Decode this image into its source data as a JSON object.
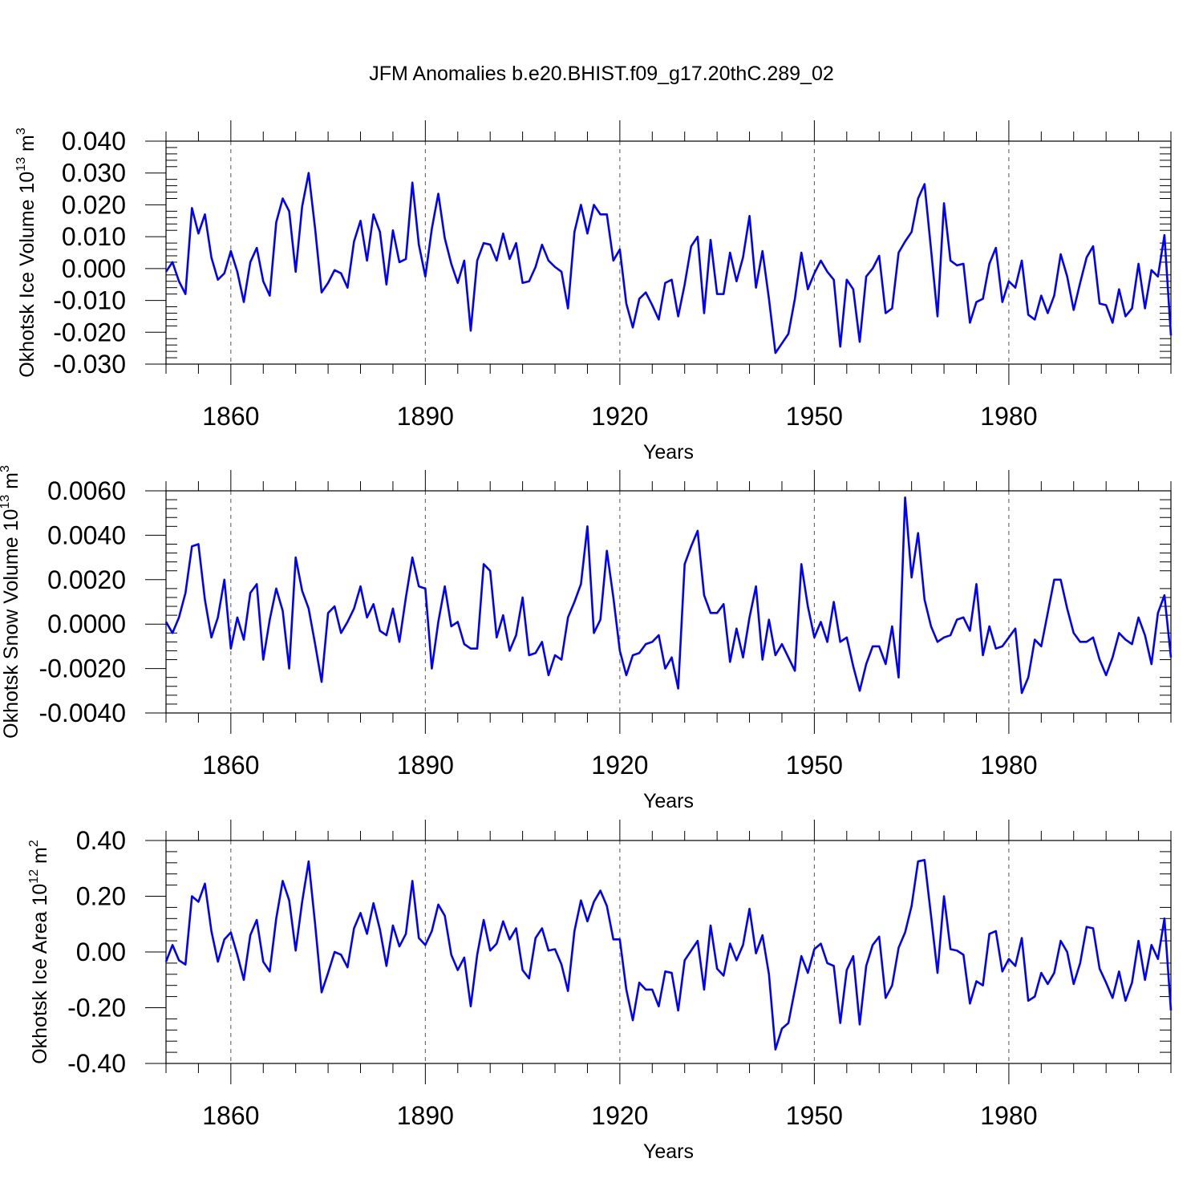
{
  "title": "JFM Anomalies b.e20.BHIST.f09_g17.20thC.289_02",
  "series_color": "#0000ff",
  "chart_data": [
    {
      "type": "line",
      "id": "ice-volume",
      "ylabel_main": "Okhotsk Ice Volume 10",
      "ylabel_exp": "13",
      "ylabel_unit": "m",
      "ylabel_unit_exp": "3",
      "xlabel": "Years",
      "xlim": [
        1850,
        2005
      ],
      "ylim": [
        -0.03,
        0.04
      ],
      "xticks": [
        1860,
        1890,
        1920,
        1950,
        1980
      ],
      "xtick_labels": [
        "1860",
        "1890",
        "1920",
        "1950",
        "1980"
      ],
      "yticks": [
        -0.03,
        -0.02,
        -0.01,
        0.0,
        0.01,
        0.02,
        0.03,
        0.04
      ],
      "ytick_labels": [
        "-0.030",
        "-0.020",
        "-0.010",
        "0.000",
        "0.010",
        "0.020",
        "0.030",
        "0.040"
      ],
      "x_start": 1850,
      "values": [
        -0.001,
        0.002,
        -0.004,
        -0.008,
        0.019,
        0.011,
        0.017,
        0.0035,
        -0.0035,
        -0.0015,
        0.0055,
        -0.001,
        -0.0105,
        0.002,
        0.0065,
        -0.004,
        -0.0085,
        0.0145,
        0.022,
        0.018,
        -0.001,
        0.0195,
        0.03,
        0.0125,
        -0.0075,
        -0.0045,
        -0.0005,
        -0.0015,
        -0.006,
        0.0085,
        0.015,
        0.0025,
        0.017,
        0.0115,
        -0.005,
        0.012,
        0.002,
        0.003,
        0.027,
        0.0075,
        -0.0025,
        0.0125,
        0.0235,
        0.0095,
        0.0015,
        -0.0045,
        0.0025,
        -0.0195,
        0.0025,
        0.008,
        0.0075,
        0.0025,
        0.011,
        0.003,
        0.008,
        -0.0045,
        -0.004,
        0.0005,
        0.0075,
        0.0025,
        0.0005,
        -0.001,
        -0.0125,
        0.0115,
        0.02,
        0.011,
        0.02,
        0.017,
        0.017,
        0.0025,
        0.006,
        -0.011,
        -0.0185,
        -0.0095,
        -0.0075,
        -0.0115,
        -0.016,
        -0.0045,
        -0.0035,
        -0.015,
        -0.005,
        0.007,
        0.01,
        -0.014,
        0.009,
        -0.008,
        -0.008,
        0.005,
        -0.004,
        0.0035,
        0.0165,
        -0.006,
        0.0055,
        -0.0095,
        -0.0265,
        -0.0235,
        -0.0205,
        -0.0095,
        0.005,
        -0.0065,
        -0.0015,
        0.0025,
        -0.001,
        -0.0035,
        -0.0245,
        -0.0035,
        -0.0065,
        -0.023,
        -0.0025,
        0.0,
        0.004,
        -0.014,
        -0.0125,
        0.005,
        0.0085,
        0.0115,
        0.022,
        0.0265,
        0.006,
        -0.015,
        0.0205,
        0.0025,
        0.001,
        0.0015,
        -0.017,
        -0.0105,
        -0.0095,
        0.0015,
        0.0065,
        -0.0105,
        -0.004,
        -0.006,
        0.0025,
        -0.0145,
        -0.016,
        -0.0085,
        -0.014,
        -0.0085,
        0.0045,
        -0.0025,
        -0.013,
        -0.0045,
        0.0035,
        0.007,
        -0.011,
        -0.0115,
        -0.017,
        -0.0065,
        -0.015,
        -0.0125,
        0.0015,
        -0.0125,
        -0.0005,
        -0.0025,
        0.0105,
        -0.021
      ]
    },
    {
      "type": "line",
      "id": "snow-volume",
      "ylabel_main": "Okhotsk Snow Volume 10",
      "ylabel_exp": "13",
      "ylabel_unit": "m",
      "ylabel_unit_exp": "3",
      "xlabel": "Years",
      "xlim": [
        1850,
        2005
      ],
      "ylim": [
        -0.004,
        0.006
      ],
      "xticks": [
        1860,
        1890,
        1920,
        1950,
        1980
      ],
      "xtick_labels": [
        "1860",
        "1890",
        "1920",
        "1950",
        "1980"
      ],
      "yticks": [
        -0.004,
        -0.002,
        0.0,
        0.002,
        0.004,
        0.006
      ],
      "ytick_labels": [
        "-0.0040",
        "-0.0020",
        "0.0000",
        "0.0020",
        "0.0040",
        "0.0060"
      ],
      "x_start": 1850,
      "values": [
        0.0001,
        -0.0004,
        0.0003,
        0.0014,
        0.0035,
        0.0036,
        0.0011,
        -0.0006,
        0.0003,
        0.002,
        -0.0011,
        0.0003,
        -0.0007,
        0.0014,
        0.0018,
        -0.0016,
        0.0002,
        0.0016,
        0.0006,
        -0.002,
        0.003,
        0.0015,
        0.0007,
        -0.0009,
        -0.0026,
        0.0005,
        0.0008,
        -0.0004,
        0.0001,
        0.0007,
        0.0017,
        0.0003,
        0.0009,
        -0.0003,
        -0.0005,
        0.0007,
        -0.0008,
        0.0012,
        0.003,
        0.0017,
        0.0016,
        -0.002,
        0.0001,
        0.0017,
        -0.0001,
        0.0001,
        -0.0009,
        -0.0011,
        -0.0011,
        0.0027,
        0.0024,
        -0.0006,
        0.0004,
        -0.0012,
        -0.0005,
        0.0012,
        -0.0014,
        -0.0013,
        -0.0008,
        -0.0023,
        -0.0014,
        -0.0016,
        0.0003,
        0.001,
        0.0018,
        0.0044,
        -0.0004,
        0.0002,
        0.0033,
        0.0012,
        -0.0012,
        -0.0023,
        -0.0014,
        -0.0013,
        -0.0009,
        -0.0008,
        -0.0005,
        -0.002,
        -0.0015,
        -0.0029,
        0.0027,
        0.0035,
        0.0042,
        0.0013,
        0.0005,
        0.0005,
        0.0009,
        -0.0017,
        -0.0002,
        -0.0015,
        0.0003,
        0.0017,
        -0.0016,
        0.0002,
        -0.0014,
        -0.0009,
        -0.0015,
        -0.0021,
        0.0027,
        0.0008,
        -0.0006,
        0.0001,
        -0.0008,
        0.001,
        -0.0008,
        -0.0006,
        -0.0019,
        -0.003,
        -0.0018,
        -0.001,
        -0.001,
        -0.0018,
        -0.0001,
        -0.0024,
        0.0057,
        0.0021,
        0.0041,
        0.0011,
        -0.0001,
        -0.0008,
        -0.0006,
        -0.0005,
        0.0002,
        0.0003,
        -0.0003,
        0.0018,
        -0.0014,
        -0.0001,
        -0.0011,
        -0.001,
        -0.0006,
        -0.0002,
        -0.0031,
        -0.0024,
        -0.0007,
        -0.001,
        0.0005,
        0.002,
        0.002,
        0.0007,
        -0.0004,
        -0.0008,
        -0.0008,
        -0.0006,
        -0.0016,
        -0.0023,
        -0.0015,
        -0.0004,
        -0.0007,
        -0.0009,
        0.0003,
        -0.0005,
        -0.0018,
        0.0005,
        0.0013,
        -0.0015
      ]
    },
    {
      "type": "line",
      "id": "ice-area",
      "ylabel_main": "Okhotsk Ice Area 10",
      "ylabel_exp": "12",
      "ylabel_unit": "m",
      "ylabel_unit_exp": "2",
      "xlabel": "Years",
      "xlim": [
        1850,
        2005
      ],
      "ylim": [
        -0.4,
        0.4
      ],
      "xticks": [
        1860,
        1890,
        1920,
        1950,
        1980
      ],
      "xtick_labels": [
        "1860",
        "1890",
        "1920",
        "1950",
        "1980"
      ],
      "yticks": [
        -0.4,
        -0.2,
        0.0,
        0.2,
        0.4
      ],
      "ytick_labels": [
        "-0.40",
        "-0.20",
        "0.00",
        "0.20",
        "0.40"
      ],
      "x_start": 1850,
      "values": [
        -0.035,
        0.025,
        -0.03,
        -0.045,
        0.2,
        0.18,
        0.245,
        0.075,
        -0.035,
        0.045,
        0.07,
        -0.01,
        -0.1,
        0.06,
        0.115,
        -0.035,
        -0.07,
        0.12,
        0.255,
        0.185,
        0.005,
        0.18,
        0.325,
        0.1,
        -0.145,
        -0.075,
        0.0,
        -0.01,
        -0.055,
        0.085,
        0.14,
        0.065,
        0.175,
        0.08,
        -0.05,
        0.095,
        0.02,
        0.065,
        0.255,
        0.05,
        0.025,
        0.075,
        0.17,
        0.13,
        -0.01,
        -0.065,
        -0.02,
        -0.195,
        -0.01,
        0.115,
        0.005,
        0.03,
        0.11,
        0.045,
        0.085,
        -0.065,
        -0.095,
        0.05,
        0.085,
        0.005,
        0.01,
        -0.045,
        -0.14,
        0.075,
        0.185,
        0.11,
        0.18,
        0.22,
        0.165,
        0.045,
        0.045,
        -0.135,
        -0.245,
        -0.11,
        -0.135,
        -0.135,
        -0.195,
        -0.07,
        -0.075,
        -0.21,
        -0.03,
        0.005,
        0.04,
        -0.135,
        0.095,
        -0.06,
        -0.085,
        0.03,
        -0.03,
        0.025,
        0.155,
        -0.005,
        0.06,
        -0.08,
        -0.35,
        -0.275,
        -0.255,
        -0.135,
        -0.015,
        -0.075,
        0.01,
        0.03,
        -0.04,
        -0.05,
        -0.255,
        -0.065,
        -0.015,
        -0.26,
        -0.05,
        0.025,
        0.055,
        -0.165,
        -0.12,
        0.015,
        0.07,
        0.165,
        0.325,
        0.33,
        0.13,
        -0.075,
        0.2,
        0.01,
        0.005,
        -0.01,
        -0.185,
        -0.105,
        -0.12,
        0.065,
        0.075,
        -0.07,
        -0.025,
        -0.05,
        0.05,
        -0.175,
        -0.16,
        -0.075,
        -0.115,
        -0.075,
        0.04,
        0.0,
        -0.115,
        -0.04,
        0.09,
        0.085,
        -0.06,
        -0.11,
        -0.165,
        -0.07,
        -0.175,
        -0.11,
        0.04,
        -0.1,
        0.025,
        -0.025,
        0.12,
        -0.21
      ]
    }
  ]
}
